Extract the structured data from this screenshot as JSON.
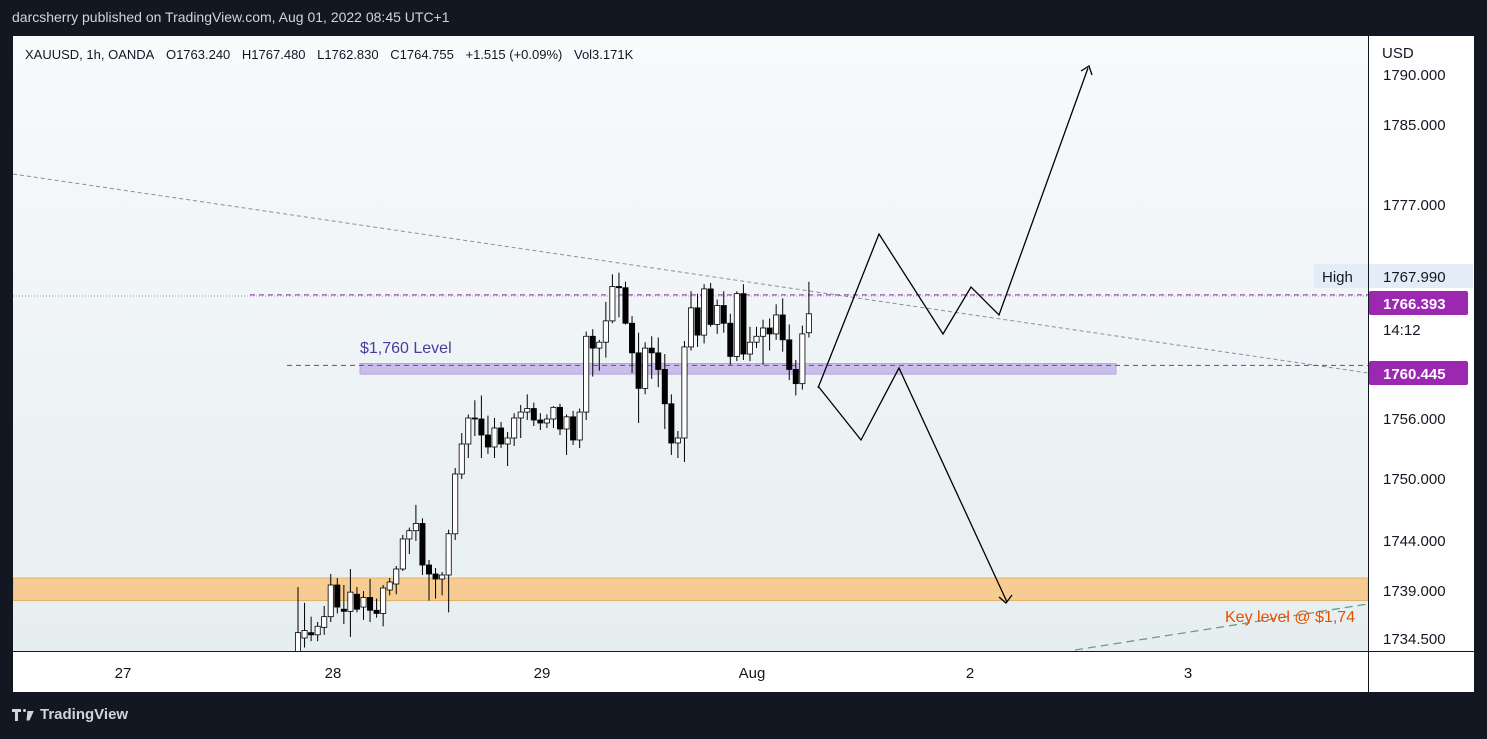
{
  "header": {
    "published": "darcsherry published on TradingView.com, Aug 01, 2022 08:45 UTC+1"
  },
  "symbol": {
    "name": "XAUUSD, 1h, OANDA",
    "open": "O1763.240",
    "high": "H1767.480",
    "low": "L1762.830",
    "close": "C1764.755",
    "change": "+1.515 (+0.09%)",
    "volume": "Vol3.171K"
  },
  "currency": "USD",
  "footer": {
    "brand": "TradingView"
  },
  "colors": {
    "bull": "#ffffff",
    "bear": "#000000",
    "purple": "#9c27b0",
    "zone": "#f6cc92",
    "level_band": "#c5b8e8",
    "key_text": "#e65100"
  },
  "labels": {
    "level_1760": "$1,760 Level",
    "key_level": "Key level @ $1,74",
    "high_tag": "High",
    "high_value": "1767.990",
    "current_price": "1766.393",
    "countdown": "14:12",
    "level_price": "1760.445"
  },
  "chart_data": {
    "type": "candlestick",
    "symbol": "XAUUSD",
    "interval": "1h",
    "y_ticks": [
      1790,
      1785,
      1777,
      1767.99,
      1756,
      1750,
      1744,
      1739,
      1734.5
    ],
    "y_tick_labels": [
      "1790.000",
      "1785.000",
      "1777.000",
      "1767.990",
      "1756.000",
      "1750.000",
      "1744.000",
      "1739.000",
      "1734.500"
    ],
    "x_tick_labels": [
      "27",
      "28",
      "29",
      "Aug",
      "2",
      "3"
    ],
    "candles": [
      {
        "o": 1733.2,
        "h": 1739.3,
        "l": 1733.0,
        "c": 1735.0
      },
      {
        "o": 1734.5,
        "h": 1737.8,
        "l": 1733.6,
        "c": 1735.2
      },
      {
        "o": 1735.0,
        "h": 1736.5,
        "l": 1734.2,
        "c": 1734.8
      },
      {
        "o": 1734.8,
        "h": 1736.0,
        "l": 1734.2,
        "c": 1735.6
      },
      {
        "o": 1735.5,
        "h": 1737.5,
        "l": 1734.8,
        "c": 1736.5
      },
      {
        "o": 1736.5,
        "h": 1740.6,
        "l": 1736.0,
        "c": 1739.5
      },
      {
        "o": 1739.5,
        "h": 1740.2,
        "l": 1736.8,
        "c": 1737.4
      },
      {
        "o": 1737.2,
        "h": 1739.5,
        "l": 1735.8,
        "c": 1737.0
      },
      {
        "o": 1737.0,
        "h": 1741.1,
        "l": 1734.6,
        "c": 1738.8
      },
      {
        "o": 1738.6,
        "h": 1739.3,
        "l": 1736.9,
        "c": 1737.2
      },
      {
        "o": 1737.4,
        "h": 1738.9,
        "l": 1736.2,
        "c": 1738.3
      },
      {
        "o": 1738.3,
        "h": 1740.1,
        "l": 1736.0,
        "c": 1737.1
      },
      {
        "o": 1737.1,
        "h": 1738.2,
        "l": 1736.4,
        "c": 1736.8
      },
      {
        "o": 1736.8,
        "h": 1739.5,
        "l": 1735.6,
        "c": 1739.2
      },
      {
        "o": 1739.0,
        "h": 1740.2,
        "l": 1738.5,
        "c": 1739.8
      },
      {
        "o": 1739.6,
        "h": 1741.4,
        "l": 1738.6,
        "c": 1741.1
      },
      {
        "o": 1741.1,
        "h": 1744.5,
        "l": 1740.9,
        "c": 1744.1
      },
      {
        "o": 1744.1,
        "h": 1745.2,
        "l": 1742.6,
        "c": 1744.9
      },
      {
        "o": 1744.9,
        "h": 1747.4,
        "l": 1743.9,
        "c": 1745.6
      },
      {
        "o": 1745.6,
        "h": 1746.1,
        "l": 1740.5,
        "c": 1741.5
      },
      {
        "o": 1741.5,
        "h": 1742.0,
        "l": 1738.0,
        "c": 1740.6
      },
      {
        "o": 1740.6,
        "h": 1741.2,
        "l": 1738.2,
        "c": 1740.1
      },
      {
        "o": 1740.1,
        "h": 1740.8,
        "l": 1738.5,
        "c": 1740.5
      },
      {
        "o": 1740.5,
        "h": 1745.0,
        "l": 1736.9,
        "c": 1744.6
      },
      {
        "o": 1744.6,
        "h": 1751.0,
        "l": 1744.0,
        "c": 1750.4
      },
      {
        "o": 1750.4,
        "h": 1754.5,
        "l": 1749.9,
        "c": 1753.4
      },
      {
        "o": 1753.4,
        "h": 1756.3,
        "l": 1752.0,
        "c": 1756.0
      },
      {
        "o": 1756.0,
        "h": 1757.5,
        "l": 1754.2,
        "c": 1755.9
      },
      {
        "o": 1755.9,
        "h": 1757.9,
        "l": 1752.0,
        "c": 1754.3
      },
      {
        "o": 1754.3,
        "h": 1756.2,
        "l": 1752.4,
        "c": 1753.1
      },
      {
        "o": 1753.1,
        "h": 1756.0,
        "l": 1752.0,
        "c": 1755.0
      },
      {
        "o": 1755.0,
        "h": 1755.6,
        "l": 1753.0,
        "c": 1753.4
      },
      {
        "o": 1753.4,
        "h": 1754.6,
        "l": 1751.2,
        "c": 1754.0
      },
      {
        "o": 1754.0,
        "h": 1756.4,
        "l": 1753.2,
        "c": 1756.0
      },
      {
        "o": 1756.0,
        "h": 1757.1,
        "l": 1754.0,
        "c": 1756.5
      },
      {
        "o": 1756.5,
        "h": 1758.0,
        "l": 1755.8,
        "c": 1756.8
      },
      {
        "o": 1756.8,
        "h": 1757.3,
        "l": 1755.2,
        "c": 1755.8
      },
      {
        "o": 1755.8,
        "h": 1756.4,
        "l": 1754.8,
        "c": 1755.5
      },
      {
        "o": 1755.5,
        "h": 1756.3,
        "l": 1755.0,
        "c": 1755.9
      },
      {
        "o": 1755.9,
        "h": 1757.0,
        "l": 1755.0,
        "c": 1756.9
      },
      {
        "o": 1756.9,
        "h": 1757.2,
        "l": 1754.3,
        "c": 1754.9
      },
      {
        "o": 1754.9,
        "h": 1756.3,
        "l": 1752.3,
        "c": 1756.1
      },
      {
        "o": 1756.1,
        "h": 1756.6,
        "l": 1753.3,
        "c": 1753.8
      },
      {
        "o": 1753.8,
        "h": 1756.8,
        "l": 1753.0,
        "c": 1756.5
      },
      {
        "o": 1756.5,
        "h": 1763.3,
        "l": 1755.8,
        "c": 1762.9
      },
      {
        "o": 1762.9,
        "h": 1763.5,
        "l": 1759.5,
        "c": 1761.9
      },
      {
        "o": 1761.9,
        "h": 1762.6,
        "l": 1760.0,
        "c": 1762.4
      },
      {
        "o": 1762.4,
        "h": 1765.8,
        "l": 1761.1,
        "c": 1764.2
      },
      {
        "o": 1764.2,
        "h": 1768.2,
        "l": 1764.0,
        "c": 1767.1
      },
      {
        "o": 1767.1,
        "h": 1768.4,
        "l": 1764.5,
        "c": 1767.0
      },
      {
        "o": 1767.0,
        "h": 1767.5,
        "l": 1763.9,
        "c": 1764.0
      },
      {
        "o": 1764.0,
        "h": 1764.6,
        "l": 1759.8,
        "c": 1761.5
      },
      {
        "o": 1761.5,
        "h": 1763.2,
        "l": 1755.5,
        "c": 1758.5
      },
      {
        "o": 1758.5,
        "h": 1762.4,
        "l": 1758.0,
        "c": 1761.9
      },
      {
        "o": 1761.9,
        "h": 1762.9,
        "l": 1759.3,
        "c": 1761.5
      },
      {
        "o": 1761.5,
        "h": 1762.8,
        "l": 1758.6,
        "c": 1760.1
      },
      {
        "o": 1760.1,
        "h": 1761.4,
        "l": 1754.9,
        "c": 1757.2
      },
      {
        "o": 1757.2,
        "h": 1758.0,
        "l": 1752.3,
        "c": 1753.5
      },
      {
        "o": 1753.5,
        "h": 1754.7,
        "l": 1752.0,
        "c": 1754.0
      },
      {
        "o": 1754.0,
        "h": 1762.5,
        "l": 1751.6,
        "c": 1762.0
      },
      {
        "o": 1762.0,
        "h": 1766.7,
        "l": 1761.7,
        "c": 1765.3
      },
      {
        "o": 1765.3,
        "h": 1766.5,
        "l": 1762.0,
        "c": 1763.0
      },
      {
        "o": 1763.0,
        "h": 1767.3,
        "l": 1762.3,
        "c": 1766.9
      },
      {
        "o": 1766.9,
        "h": 1767.4,
        "l": 1763.7,
        "c": 1763.9
      },
      {
        "o": 1763.9,
        "h": 1766.0,
        "l": 1763.1,
        "c": 1765.5
      },
      {
        "o": 1765.5,
        "h": 1766.7,
        "l": 1763.2,
        "c": 1764.0
      },
      {
        "o": 1764.0,
        "h": 1764.8,
        "l": 1760.5,
        "c": 1761.2
      },
      {
        "o": 1761.2,
        "h": 1766.7,
        "l": 1760.8,
        "c": 1766.5
      },
      {
        "o": 1766.5,
        "h": 1767.3,
        "l": 1760.9,
        "c": 1761.4
      },
      {
        "o": 1761.4,
        "h": 1763.7,
        "l": 1760.8,
        "c": 1762.4
      },
      {
        "o": 1762.4,
        "h": 1763.7,
        "l": 1761.9,
        "c": 1762.9
      },
      {
        "o": 1762.9,
        "h": 1764.3,
        "l": 1760.5,
        "c": 1763.6
      },
      {
        "o": 1763.6,
        "h": 1764.4,
        "l": 1761.7,
        "c": 1763.1
      },
      {
        "o": 1763.1,
        "h": 1765.6,
        "l": 1762.6,
        "c": 1764.7
      },
      {
        "o": 1764.7,
        "h": 1766.1,
        "l": 1761.6,
        "c": 1762.6
      },
      {
        "o": 1762.6,
        "h": 1763.9,
        "l": 1759.2,
        "c": 1760.1
      },
      {
        "o": 1760.1,
        "h": 1760.9,
        "l": 1757.9,
        "c": 1758.9
      },
      {
        "o": 1758.9,
        "h": 1763.8,
        "l": 1758.4,
        "c": 1763.1
      },
      {
        "o": 1763.2,
        "h": 1767.5,
        "l": 1762.8,
        "c": 1764.8
      }
    ],
    "price_lines": [
      1766.393,
      1760.445
    ],
    "level_band": [
      1759.7,
      1760.6
    ],
    "support_zone": [
      1738.0,
      1740.2
    ]
  }
}
